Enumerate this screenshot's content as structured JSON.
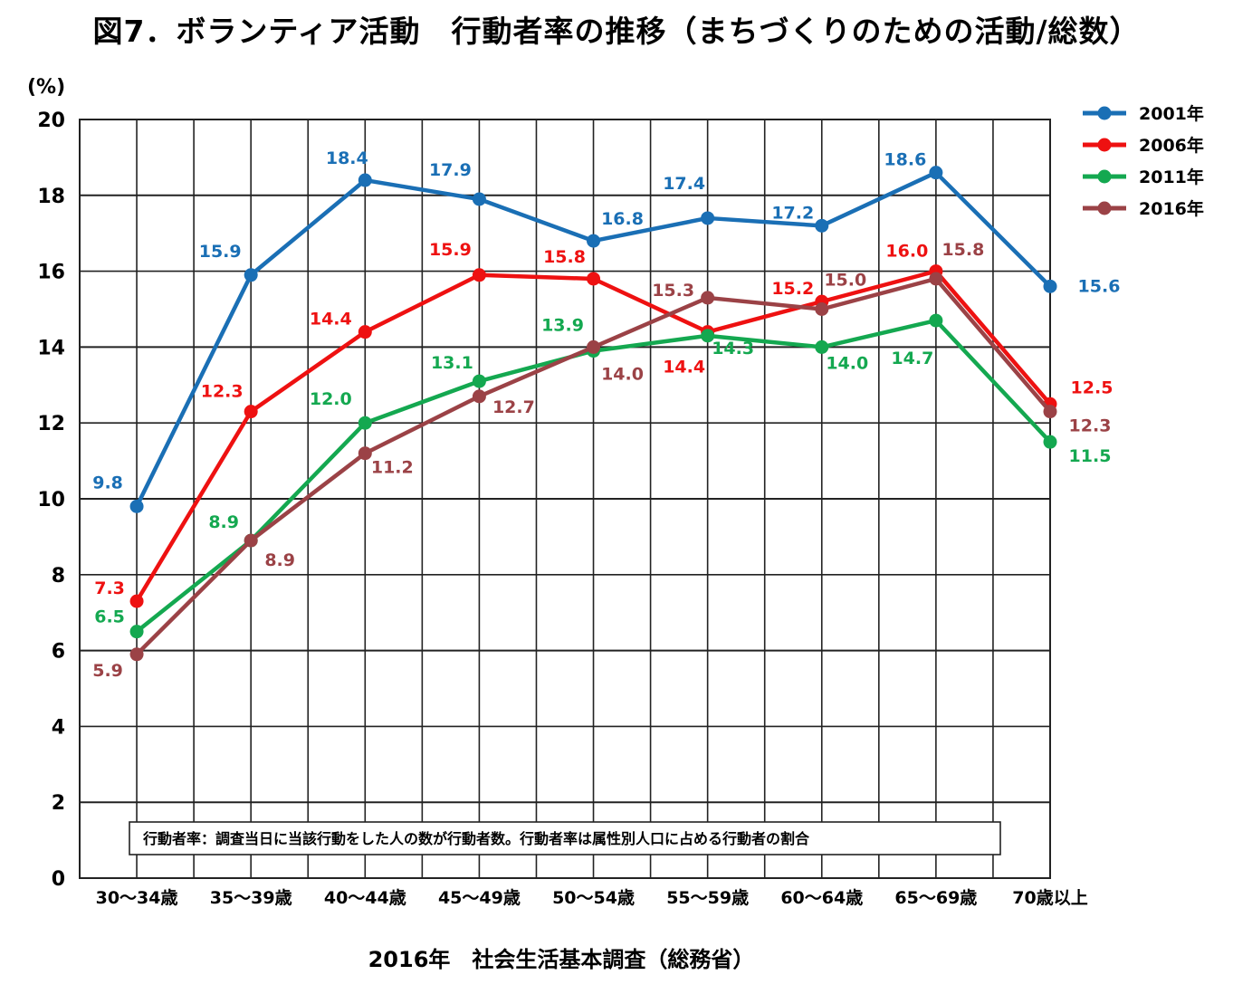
{
  "title": "図7．ボランティア活動　行動者率の推移（まちづくりのための活動/総数）",
  "source": "2016年　社会生活基本調査（総務省）",
  "note": "行動者率：調査当日に当該行動をした人の数が行動者数。行動者率は属性別人口に占める行動者の割合",
  "chart_data": {
    "type": "line",
    "ylabel": "(%)",
    "ylim": [
      0,
      20
    ],
    "yticks": [
      0,
      2,
      4,
      6,
      8,
      10,
      12,
      14,
      16,
      18,
      20
    ],
    "categories": [
      "30～34歳",
      "35～39歳",
      "40～44歳",
      "45～49歳",
      "50～54歳",
      "55～59歳",
      "60～64歳",
      "65～69歳",
      "70歳以上"
    ],
    "grid": true,
    "legend_position": "top-right",
    "series": [
      {
        "name": "2001年",
        "color": "#1a6fb5",
        "values": [
          9.8,
          15.9,
          18.4,
          17.9,
          16.8,
          17.4,
          17.2,
          18.6,
          15.6
        ]
      },
      {
        "name": "2006年",
        "color": "#ee1111",
        "values": [
          7.3,
          12.3,
          14.4,
          15.9,
          15.8,
          14.4,
          15.2,
          16.0,
          12.5
        ]
      },
      {
        "name": "2011年",
        "color": "#14a850",
        "values": [
          6.5,
          8.9,
          12.0,
          13.1,
          13.9,
          14.3,
          14.0,
          14.7,
          11.5
        ]
      },
      {
        "name": "2016年",
        "color": "#9b4246",
        "values": [
          5.9,
          8.9,
          11.2,
          12.7,
          14.0,
          15.3,
          15.0,
          15.8,
          12.3
        ]
      }
    ]
  }
}
